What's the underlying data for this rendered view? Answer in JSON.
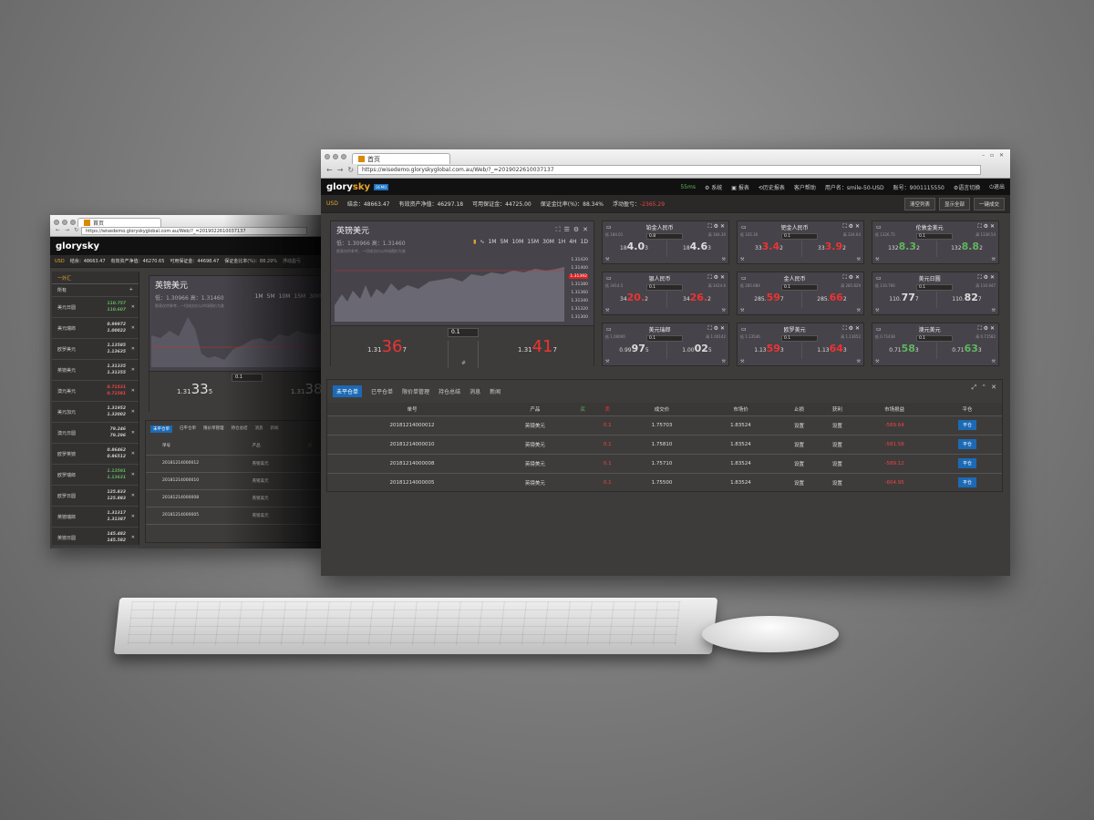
{
  "back": {
    "tab_title": "首页",
    "url": "https://wisedemo.gloryskyglobal.com.au/Web/?_=2019022610037137",
    "logo": "glorysky",
    "stat": {
      "currency": "USD",
      "balance": "结余：48663.47",
      "equity": "有效资产净值：46270.65",
      "margin": "可用保证金：44698.47",
      "ratio": "保证金比率(%)：88.29%",
      "float": "浮动盈亏"
    },
    "side_head": "一外汇",
    "side_sub": "所有",
    "side_items": [
      {
        "name": "美元日圆",
        "p1": "110.757",
        "p2": "110.607",
        "c": "g"
      },
      {
        "name": "美元瑞郎",
        "p1": "0.99972",
        "p2": "1.00022",
        "c": "w"
      },
      {
        "name": "欧罗美元",
        "p1": "1.13585",
        "p2": "1.13635",
        "c": "w"
      },
      {
        "name": "英镑美元",
        "p1": "1.31335",
        "p2": "1.31355",
        "c": "w"
      },
      {
        "name": "澳元美元",
        "p1": "0.71531",
        "p2": "0.71581",
        "c": "r"
      },
      {
        "name": "美元加元",
        "p1": "1.31952",
        "p2": "1.32002",
        "c": "w"
      },
      {
        "name": "澳元日圆",
        "p1": "79.246",
        "p2": "79.296",
        "c": "w"
      },
      {
        "name": "欧罗英镑",
        "p1": "0.86462",
        "p2": "0.86512",
        "c": "w"
      },
      {
        "name": "欧罗瑞郎",
        "p1": "1.13591",
        "p2": "1.13631",
        "c": "g"
      },
      {
        "name": "欧罗日圆",
        "p1": "125.833",
        "p2": "125.883",
        "c": "w"
      },
      {
        "name": "英镑瑞郎",
        "p1": "1.31317",
        "p2": "1.31387",
        "c": "w"
      },
      {
        "name": "英镑日圆",
        "p1": "145.482",
        "p2": "145.582",
        "c": "w"
      }
    ],
    "chart_title": "英镑美元",
    "chart_range": "低：1.30966  高：1.31460",
    "chart_note": "图表仅供参考，一切成交价以市场图价为准",
    "tfs": [
      "1M",
      "5M",
      "10M",
      "15M",
      "30M"
    ],
    "sell": {
      "a": "1.31",
      "b": "33",
      "c": "5"
    },
    "buy": {
      "a": "1.31",
      "b": "38",
      "c": "5"
    },
    "lot": "0.1",
    "order_tabs": [
      "未平仓单",
      "已平仓单",
      "限价单管理",
      "持仓总结",
      "消息",
      "新闻"
    ],
    "order_head": [
      "单号",
      "产品",
      "买"
    ],
    "orders": [
      {
        "id": "20181214000012",
        "p": "英镑美元"
      },
      {
        "id": "20181214000010",
        "p": "英镑美元"
      },
      {
        "id": "20181214000008",
        "p": "英镑美元"
      },
      {
        "id": "20181214000005",
        "p": "英镑美元"
      }
    ]
  },
  "front": {
    "tab_title": "首页",
    "url": "https://wisedemo.gloryskyglobal.com.au/Web/?_=2019022610037137",
    "logo_a": "glory",
    "logo_b": "sky",
    "badge": "DEMO",
    "nav": {
      "ms": "55ms",
      "sys": "⚙ 系统",
      "report": "▣ 报表",
      "history": "⟲历史报表",
      "help": "客户帮助",
      "user": "用户名：smile-50-USD",
      "account": "账号：9001115550",
      "lang": "⚙语言切换",
      "logout": "⏻退出"
    },
    "stat": {
      "currency": "USD",
      "balance": "结余：48663.47",
      "equity": "有效资产净值：46297.18",
      "margin": "可用保证金：44725.00",
      "ratio": "保证金比率(%)：88.34%",
      "float_label": "浮动盈亏：",
      "float_val": "-2365.29"
    },
    "buttons": {
      "clear": "清空列表",
      "show": "显示全部",
      "close_all": "一键成交"
    },
    "chart": {
      "title": "英镑美元",
      "range": "低：1.30966  高：1.31460",
      "note": "图表仅供参考，一切成交价以市场图价为准",
      "tfs": [
        "1M",
        "5M",
        "10M",
        "15M",
        "30M",
        "1H",
        "4H",
        "1D"
      ],
      "yticks": [
        "1.31420",
        "1.31400",
        "1.31392",
        "1.31380",
        "1.31360",
        "1.31340",
        "1.31320",
        "1.31300"
      ],
      "sell": {
        "a": "1.31",
        "b": "36",
        "c": "7"
      },
      "buy": {
        "a": "1.31",
        "b": "41",
        "c": "7"
      },
      "lot": "0.1",
      "hash": "#"
    },
    "tiles": [
      {
        "title": "铂金人民币",
        "low": "低 184.01",
        "high": "高 184.30",
        "lot": "0.8",
        "s1": "18",
        "s2": "4.0",
        "s3": "3",
        "b1": "18",
        "b2": "4.6",
        "b3": "3",
        "sc": "w",
        "bc": "w"
      },
      {
        "title": "钯金人民币",
        "low": "低 335.30",
        "high": "高 334.64",
        "lot": "0.1",
        "s1": "33",
        "s2": "3.4",
        "s3": "2",
        "b1": "33",
        "b2": "3.9",
        "b3": "2",
        "sc": "r",
        "bc": "r"
      },
      {
        "title": "伦敦金美元",
        "low": "低 1326.75",
        "high": "高 1336.54",
        "lot": "0.1",
        "s1": "132",
        "s2": "8.3",
        "s3": "2",
        "b1": "132",
        "b2": "8.8",
        "b3": "2",
        "sc": "g",
        "bc": "g"
      },
      {
        "title": "银人民币",
        "low": "低 3414.5",
        "high": "高 3424.6",
        "lot": "0.1",
        "s1": "34",
        "s2": "20.",
        "s3": "2",
        "b1": "34",
        "b2": "26.",
        "b3": "2",
        "sc": "r",
        "bc": "r"
      },
      {
        "title": "金人民币",
        "low": "低 285.684",
        "high": "高 285.829",
        "lot": "0.1",
        "s1": "285.",
        "s2": "59",
        "s3": "7",
        "b1": "285.",
        "b2": "66",
        "b3": "2",
        "sc": "r",
        "bc": "r"
      },
      {
        "title": "美元日圆",
        "low": "低 110.766",
        "high": "高 110.947",
        "lot": "0.1",
        "s1": "110.",
        "s2": "77",
        "s3": "7",
        "b1": "110.",
        "b2": "82",
        "b3": "7",
        "sc": "w",
        "bc": "w"
      },
      {
        "title": "美元瑞郎",
        "low": "低 1.00000",
        "high": "高 1.00142",
        "lot": "0.1",
        "s1": "0.99",
        "s2": "97",
        "s3": "5",
        "b1": "1.00",
        "b2": "02",
        "b3": "5",
        "sc": "w",
        "bc": "w"
      },
      {
        "title": "欧罗美元",
        "low": "低 1.13546",
        "high": "高 1.13652",
        "lot": "0.1",
        "s1": "1.13",
        "s2": "59",
        "s3": "3",
        "b1": "1.13",
        "b2": "64",
        "b3": "3",
        "sc": "r",
        "bc": "r"
      },
      {
        "title": "澳元美元",
        "low": "低 0.71438",
        "high": "高 0.71582",
        "lot": "0.1",
        "s1": "0.71",
        "s2": "58",
        "s3": "3",
        "b1": "0.71",
        "b2": "63",
        "b3": "3",
        "sc": "g",
        "bc": "g"
      }
    ],
    "order_tabs": [
      "未平仓单",
      "已平仓单",
      "限价单管理",
      "持仓总结",
      "消息",
      "新闻"
    ],
    "order_head": [
      "单号",
      "产品",
      "买",
      "卖",
      "成交价",
      "市场价",
      "止损",
      "获利",
      "市场损益",
      "平仓"
    ],
    "orders": [
      {
        "id": "20181214000012",
        "prod": "英镑美元",
        "buy": "",
        "sell": "0.1",
        "open": "1.75703",
        "mkt": "1.83524",
        "sl": "设置",
        "tp": "设置",
        "pl": "-589.64",
        "btn": "平仓"
      },
      {
        "id": "20181214000010",
        "prod": "英镑美元",
        "buy": "",
        "sell": "0.1",
        "open": "1.75810",
        "mkt": "1.83524",
        "sl": "设置",
        "tp": "设置",
        "pl": "-581.58",
        "btn": "平仓"
      },
      {
        "id": "20181214000008",
        "prod": "英镑美元",
        "buy": "",
        "sell": "0.1",
        "open": "1.75710",
        "mkt": "1.83524",
        "sl": "设置",
        "tp": "设置",
        "pl": "-589.12",
        "btn": "平仓"
      },
      {
        "id": "20181214000005",
        "prod": "英镑美元",
        "buy": "",
        "sell": "0.1",
        "open": "1.75500",
        "mkt": "1.83524",
        "sl": "设置",
        "tp": "设置",
        "pl": "-604.95",
        "btn": "平仓"
      }
    ]
  },
  "colors": {
    "accent": "#e8a530",
    "negative": "#e33",
    "positive": "#5fb65f",
    "button": "#1c6ab5"
  }
}
